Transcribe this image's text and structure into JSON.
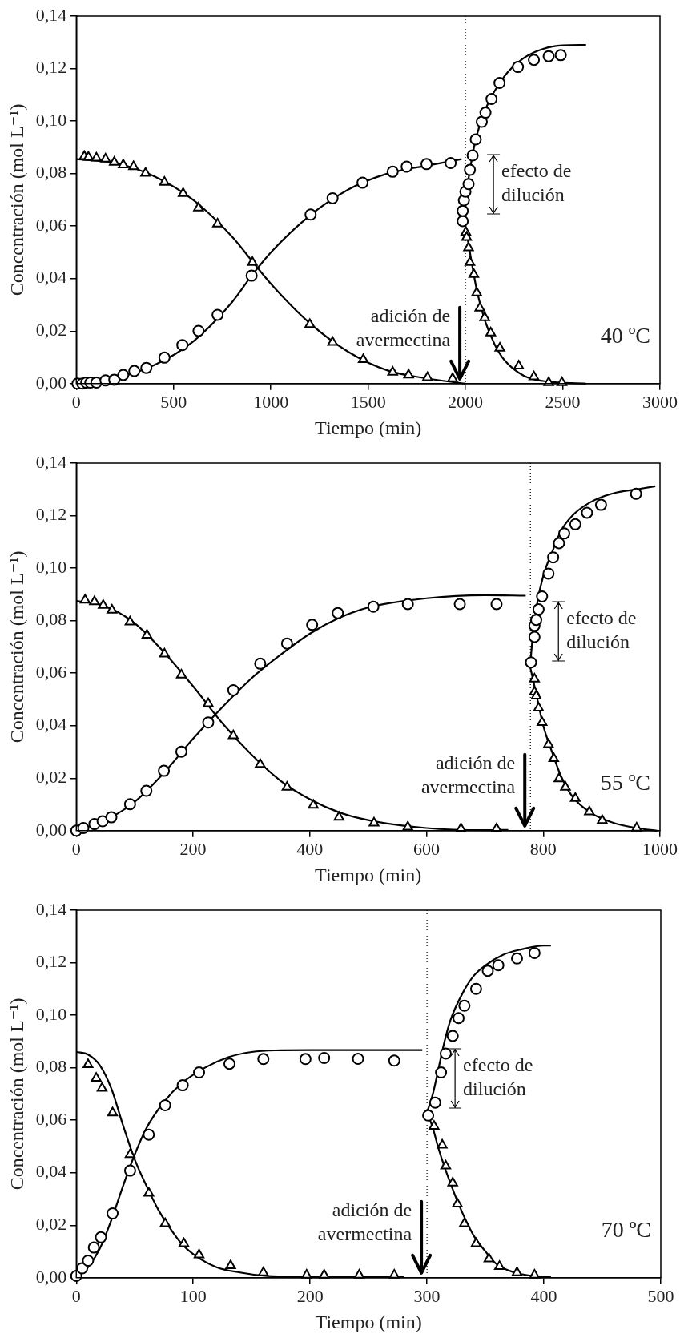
{
  "chart_data": [
    {
      "type": "scatter",
      "xlabel": "Tiempo (min)",
      "ylabel": "Concentración (mol L⁻¹)",
      "xlim": [
        0,
        3000
      ],
      "xticks": [
        0,
        500,
        1000,
        1500,
        2000,
        2500,
        3000
      ],
      "ylim": [
        0,
        0.14
      ],
      "yticks": [
        {
          "value": 0,
          "label": "0,00"
        },
        {
          "value": 0.02,
          "label": "0,02"
        },
        {
          "value": 0.04,
          "label": "0,04"
        },
        {
          "value": 0.06,
          "label": "0,06"
        },
        {
          "value": 0.08,
          "label": "0,08"
        },
        {
          "value": 0.1,
          "label": "0,10"
        },
        {
          "value": 0.12,
          "label": "0,12"
        },
        {
          "value": 0.14,
          "label": "0,14"
        }
      ],
      "grid": false,
      "legend": false,
      "ref_lines": [
        {
          "axis": "x",
          "value": 2000,
          "line_style": "dotted",
          "color": "#000000"
        }
      ],
      "annotations": [
        {
          "text": "adición de avermectina",
          "x": 2000,
          "y": 0
        },
        "efecto de dilución",
        "40 ºC"
      ],
      "series": [
        {
          "type": "line",
          "marker": "none",
          "color": "#000000",
          "x": [
            0,
            200,
            400,
            600,
            800,
            900,
            1000,
            1200,
            1400,
            1600,
            1800,
            1980
          ],
          "values": [
            0,
            0.002,
            0.007,
            0.016,
            0.031,
            0.041,
            0.05,
            0.064,
            0.074,
            0.08,
            0.083,
            0.0855
          ]
        },
        {
          "type": "line",
          "marker": "none",
          "color": "#000000",
          "x": [
            0,
            200,
            400,
            600,
            800,
            900,
            1000,
            1200,
            1400,
            1600,
            1800,
            2000
          ],
          "values": [
            0.0855,
            0.084,
            0.079,
            0.07,
            0.056,
            0.047,
            0.038,
            0.023,
            0.012,
            0.005,
            0.002,
            0
          ]
        },
        {
          "type": "line",
          "marker": "none",
          "color": "#000000",
          "x": [
            1990,
            2000,
            2020,
            2050,
            2100,
            2200,
            2300,
            2400,
            2500,
            2620
          ],
          "values": [
            0.062,
            0.07,
            0.08,
            0.092,
            0.104,
            0.117,
            0.124,
            0.1275,
            0.1288,
            0.129
          ]
        },
        {
          "type": "line",
          "marker": "none",
          "color": "#000000",
          "x": [
            2000,
            2030,
            2060,
            2100,
            2150,
            2200,
            2300,
            2400,
            2620
          ],
          "values": [
            0.06,
            0.047,
            0.035,
            0.024,
            0.015,
            0.009,
            0.003,
            0.001,
            0
          ]
        },
        {
          "marker": "triangle",
          "color": "#000000",
          "x": [
            41,
            62,
            103,
            150,
            195,
            241,
            294,
            356,
            453,
            549,
            628,
            726,
            905,
            1200,
            1317,
            1475,
            1626,
            1708,
            1805,
            1934,
            2002,
            2006,
            2016,
            2023,
            2043,
            2058,
            2074,
            2099,
            2130,
            2177,
            2274,
            2352,
            2428,
            2496
          ],
          "values": [
            0.0865,
            0.0862,
            0.0859,
            0.0855,
            0.0843,
            0.0833,
            0.0826,
            0.0801,
            0.0767,
            0.0724,
            0.0669,
            0.0608,
            0.0462,
            0.0225,
            0.0157,
            0.0092,
            0.0044,
            0.0033,
            0.0023,
            0.0019,
            0.0576,
            0.0557,
            0.0517,
            0.0462,
            0.0416,
            0.0346,
            0.0288,
            0.0251,
            0.0193,
            0.0135,
            0.0067,
            0.0026,
            0.0004,
            0.0004
          ]
        },
        {
          "marker": "circle",
          "color": "#000000",
          "x": [
            6,
            31,
            51,
            72,
            103,
            150,
            195,
            241,
            298,
            360,
            453,
            545,
            628,
            726,
            901,
            1204,
            1317,
            1471,
            1626,
            1698,
            1800,
            1924,
            1986,
            1986,
            1992,
            2000,
            2016,
            2023,
            2037,
            2053,
            2084,
            2103,
            2134,
            2175,
            2270,
            2352,
            2428,
            2490
          ],
          "values": [
            0,
            0,
            0.0004,
            0.0004,
            0.0004,
            0.0012,
            0.0015,
            0.0033,
            0.0048,
            0.006,
            0.0099,
            0.0147,
            0.0201,
            0.0262,
            0.0411,
            0.0644,
            0.0706,
            0.0765,
            0.0807,
            0.0826,
            0.0836,
            0.084,
            0.0619,
            0.0658,
            0.0698,
            0.0731,
            0.076,
            0.0814,
            0.0869,
            0.093,
            0.0997,
            0.1032,
            0.1084,
            0.1145,
            0.1206,
            0.1233,
            0.1247,
            0.1251
          ]
        }
      ]
    },
    {
      "type": "scatter",
      "xlabel": "Tiempo (min)",
      "ylabel": "Concentración (mol L⁻¹)",
      "xlim": [
        0,
        1000
      ],
      "xticks": [
        0,
        200,
        400,
        600,
        800,
        1000
      ],
      "ylim": [
        0,
        0.14
      ],
      "yticks": [
        {
          "value": 0,
          "label": "0,00"
        },
        {
          "value": 0.02,
          "label": "0,02"
        },
        {
          "value": 0.04,
          "label": "0,04"
        },
        {
          "value": 0.06,
          "label": "0,06"
        },
        {
          "value": 0.08,
          "label": "0,08"
        },
        {
          "value": 0.1,
          "label": "0,10"
        },
        {
          "value": 0.12,
          "label": "0,12"
        },
        {
          "value": 0.14,
          "label": "0,14"
        }
      ],
      "grid": false,
      "legend": false,
      "ref_lines": [
        {
          "axis": "x",
          "value": 778,
          "line_style": "dotted",
          "color": "#000000"
        }
      ],
      "annotations": [
        {
          "text": "adición de avermectina",
          "x": 778,
          "y": 0
        },
        "efecto de dilución",
        "55 ºC"
      ],
      "series": [
        {
          "type": "line",
          "marker": "none",
          "color": "#000000",
          "x": [
            0,
            50,
            100,
            150,
            200,
            250,
            300,
            350,
            400,
            450,
            500,
            600,
            700,
            770
          ],
          "values": [
            0,
            0.004,
            0.011,
            0.022,
            0.035,
            0.047,
            0.058,
            0.067,
            0.075,
            0.081,
            0.085,
            0.0885,
            0.0897,
            0.0895
          ]
        },
        {
          "type": "line",
          "marker": "none",
          "color": "#000000",
          "x": [
            0,
            50,
            100,
            150,
            200,
            250,
            300,
            350,
            400,
            450,
            500,
            600,
            700,
            740
          ],
          "values": [
            0.0875,
            0.0855,
            0.079,
            0.068,
            0.055,
            0.041,
            0.029,
            0.019,
            0.012,
            0.007,
            0.004,
            0.001,
            0.0002,
            0.0003
          ]
        },
        {
          "type": "line",
          "marker": "none",
          "color": "#000000",
          "x": [
            778,
            782,
            790,
            800,
            815,
            830,
            850,
            880,
            920,
            960,
            992
          ],
          "values": [
            0.064,
            0.074,
            0.087,
            0.097,
            0.106,
            0.114,
            0.12,
            0.125,
            0.1285,
            0.13,
            0.1312
          ]
        },
        {
          "type": "line",
          "marker": "none",
          "color": "#000000",
          "x": [
            778,
            790,
            800,
            815,
            830,
            850,
            880,
            920,
            960,
            995
          ],
          "values": [
            0.062,
            0.05,
            0.04,
            0.03,
            0.021,
            0.013,
            0.007,
            0.003,
            0.001,
            0
          ]
        },
        {
          "marker": "triangle",
          "color": "#000000",
          "x": [
            15,
            31,
            46,
            61,
            92,
            121,
            151,
            180,
            226,
            269,
            315,
            361,
            406,
            450,
            510,
            568,
            659,
            720,
            785,
            785,
            788,
            792,
            798,
            809,
            818,
            827,
            838,
            855,
            879,
            901,
            960
          ],
          "values": [
            0.0878,
            0.0872,
            0.0858,
            0.084,
            0.0795,
            0.0745,
            0.0673,
            0.0593,
            0.0484,
            0.0362,
            0.0253,
            0.0166,
            0.0097,
            0.0051,
            0.0029,
            0.0014,
            0.0007,
            0.0007,
            0.0578,
            0.0528,
            0.0513,
            0.0467,
            0.0412,
            0.0328,
            0.0275,
            0.0198,
            0.0166,
            0.0123,
            0.0072,
            0.0039,
            0.001
          ]
        },
        {
          "marker": "circle",
          "color": "#000000",
          "x": [
            0,
            12,
            31,
            45,
            60,
            92,
            120,
            150,
            180,
            226,
            269,
            315,
            361,
            404,
            448,
            509,
            568,
            657,
            720,
            779,
            785,
            785,
            788,
            792,
            798,
            809,
            817,
            827,
            836,
            855,
            875,
            899,
            959
          ],
          "values": [
            0,
            0.001,
            0.0025,
            0.0036,
            0.0051,
            0.0101,
            0.0152,
            0.0228,
            0.0301,
            0.0412,
            0.0535,
            0.0636,
            0.0713,
            0.0784,
            0.0829,
            0.0853,
            0.0863,
            0.0863,
            0.0863,
            0.0641,
            0.0738,
            0.0781,
            0.0803,
            0.0843,
            0.0892,
            0.0979,
            0.1041,
            0.1095,
            0.1132,
            0.1167,
            0.1211,
            0.1241,
            0.1283
          ]
        }
      ]
    },
    {
      "type": "scatter",
      "xlabel": "Tiempo (min)",
      "ylabel": "Concentración (mol L⁻¹)",
      "xlim": [
        0,
        500
      ],
      "xticks": [
        0,
        100,
        200,
        300,
        400,
        500
      ],
      "ylim": [
        0,
        0.14
      ],
      "yticks": [
        {
          "value": 0,
          "label": "0,00"
        },
        {
          "value": 0.02,
          "label": "0,02"
        },
        {
          "value": 0.04,
          "label": "0,04"
        },
        {
          "value": 0.06,
          "label": "0,06"
        },
        {
          "value": 0.08,
          "label": "0,08"
        },
        {
          "value": 0.1,
          "label": "0,10"
        },
        {
          "value": 0.12,
          "label": "0,12"
        },
        {
          "value": 0.14,
          "label": "0,14"
        }
      ],
      "grid": false,
      "legend": false,
      "ref_lines": [
        {
          "axis": "x",
          "value": 300,
          "line_style": "dotted",
          "color": "#000000"
        }
      ],
      "annotations": [
        {
          "text": "adición de avermectina",
          "x": 300,
          "y": 0
        },
        "efecto de dilución",
        "70 ºC"
      ],
      "series": [
        {
          "type": "line",
          "marker": "none",
          "color": "#000000",
          "x": [
            0,
            10,
            20,
            30,
            40,
            50,
            60,
            75,
            90,
            110,
            130,
            150,
            170,
            200,
            296
          ],
          "values": [
            0,
            0.004,
            0.011,
            0.022,
            0.035,
            0.047,
            0.057,
            0.067,
            0.074,
            0.08,
            0.084,
            0.086,
            0.0866,
            0.0867,
            0.0867
          ]
        },
        {
          "type": "line",
          "marker": "none",
          "color": "#000000",
          "x": [
            0,
            10,
            20,
            30,
            40,
            50,
            60,
            70,
            80,
            90,
            100,
            120,
            140,
            160,
            200,
            280
          ],
          "values": [
            0.086,
            0.085,
            0.081,
            0.072,
            0.058,
            0.045,
            0.035,
            0.026,
            0.019,
            0.013,
            0.009,
            0.004,
            0.002,
            0.0008,
            0.0003,
            0.0003
          ]
        },
        {
          "type": "line",
          "marker": "none",
          "color": "#000000",
          "x": [
            300,
            305,
            310,
            315,
            320,
            330,
            340,
            350,
            365,
            380,
            400,
            406
          ],
          "values": [
            0.063,
            0.07,
            0.08,
            0.09,
            0.098,
            0.108,
            0.115,
            0.119,
            0.123,
            0.125,
            0.1265,
            0.1265
          ]
        },
        {
          "type": "line",
          "marker": "none",
          "color": "#000000",
          "x": [
            300,
            305,
            310,
            320,
            330,
            340,
            350,
            360,
            375,
            390,
            406
          ],
          "values": [
            0.063,
            0.057,
            0.049,
            0.036,
            0.025,
            0.016,
            0.01,
            0.005,
            0.002,
            0.0007,
            0.0003
          ]
        },
        {
          "marker": "triangle",
          "color": "#000000",
          "x": [
            10,
            17,
            22,
            31,
            46,
            62,
            76,
            92,
            105,
            132,
            160,
            197,
            212,
            242,
            272,
            306,
            313,
            316,
            322,
            326,
            332,
            342,
            353,
            362,
            377,
            392
          ],
          "values": [
            0.0812,
            0.076,
            0.0722,
            0.0628,
            0.0469,
            0.0322,
            0.0206,
            0.013,
            0.0087,
            0.0046,
            0.0019,
            0.001,
            0.001,
            0.001,
            0.001,
            0.0577,
            0.0505,
            0.0426,
            0.0361,
            0.0281,
            0.0206,
            0.013,
            0.0072,
            0.0043,
            0.0019,
            0.001
          ]
        },
        {
          "marker": "circle",
          "color": "#000000",
          "x": [
            0,
            5,
            10,
            15,
            21,
            31,
            46,
            62,
            76,
            91,
            105,
            131,
            160,
            196,
            212,
            241,
            272,
            301,
            307,
            312,
            316,
            322,
            327,
            332,
            342,
            352,
            361,
            377,
            392
          ],
          "values": [
            0.0007,
            0.0036,
            0.0065,
            0.0115,
            0.0154,
            0.0245,
            0.0408,
            0.0545,
            0.0657,
            0.0733,
            0.0782,
            0.0815,
            0.0833,
            0.0833,
            0.0837,
            0.0834,
            0.0827,
            0.0618,
            0.0667,
            0.0782,
            0.0854,
            0.0921,
            0.0989,
            0.1036,
            0.11,
            0.1169,
            0.119,
            0.1216,
            0.1237
          ]
        }
      ]
    }
  ]
}
